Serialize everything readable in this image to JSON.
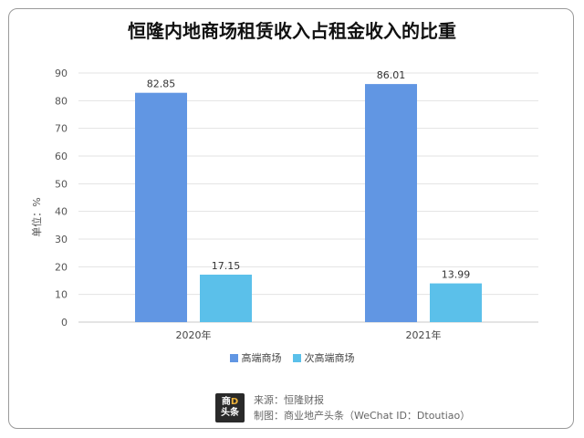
{
  "logo": {
    "top": "商",
    "accent": "D",
    "bottom": "头条"
  },
  "footer": {
    "source": "来源：恒隆财报",
    "maker": "制图：商业地产头条（WeChat ID：Dtoutiao）"
  },
  "chart_data": {
    "type": "bar",
    "title": "恒隆内地商场租赁收入占租金收入的比重",
    "ylabel": "单位：%",
    "xlabel": "",
    "categories": [
      "2020年",
      "2021年"
    ],
    "series": [
      {
        "name": "高端商场",
        "values": [
          82.85,
          86.01
        ],
        "color": "#6196e3"
      },
      {
        "name": "次高端商场",
        "values": [
          17.15,
          13.99
        ],
        "color": "#5bc0ea"
      }
    ],
    "ylim": [
      0,
      90
    ],
    "yticks": [
      0,
      10,
      20,
      30,
      40,
      50,
      60,
      70,
      80,
      90
    ],
    "grid": true,
    "legend": "bottom"
  }
}
